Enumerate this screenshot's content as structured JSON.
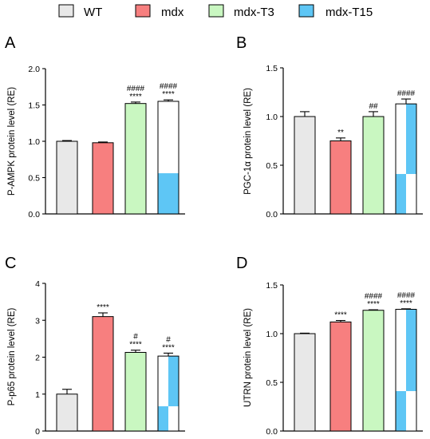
{
  "legend": [
    {
      "label": "WT",
      "color": "#e8e8e8"
    },
    {
      "label": "mdx",
      "color": "#f77f7f"
    },
    {
      "label": "mdx-T3",
      "color": "#c9f7c1"
    },
    {
      "label": "mdx-T15",
      "color": "#5ec6f5"
    }
  ],
  "colors": {
    "wt": "#e8e8e8",
    "mdx": "#f77f7f",
    "t3": "#c9f7c1",
    "t15": "#5ec6f5",
    "axis": "#000000"
  },
  "chart_data": [
    {
      "panel": "A",
      "type": "bar",
      "ylabel": "P-AMPK protein level (RE)",
      "ylim": [
        0,
        2.0
      ],
      "yticks": [
        "0.0",
        "0.5",
        "1.0",
        "1.5",
        "2.0"
      ],
      "categories": [
        "WT",
        "mdx",
        "mdx-T3",
        "mdx-T15"
      ],
      "values": [
        1.0,
        0.98,
        1.52,
        1.55
      ],
      "errors": [
        0.01,
        0.01,
        0.02,
        0.02
      ],
      "annotations": [
        {
          "bar": 2,
          "lines": [
            "####",
            "****"
          ]
        },
        {
          "bar": 3,
          "lines": [
            "####",
            "****"
          ]
        }
      ],
      "t15_fill": {
        "type": "bottom",
        "value": 0.56
      }
    },
    {
      "panel": "B",
      "type": "bar",
      "ylabel": "PGC-1α protein level (RE)",
      "ylim": [
        0,
        1.5
      ],
      "yticks": [
        "0.0",
        "0.5",
        "1.0",
        "1.5"
      ],
      "categories": [
        "WT",
        "mdx",
        "mdx-T3",
        "mdx-T15"
      ],
      "values": [
        1.0,
        0.75,
        1.0,
        1.13
      ],
      "errors": [
        0.05,
        0.03,
        0.05,
        0.05
      ],
      "annotations": [
        {
          "bar": 1,
          "lines": [
            "**"
          ]
        },
        {
          "bar": 2,
          "lines": [
            "##"
          ]
        },
        {
          "bar": 3,
          "lines": [
            "####"
          ]
        }
      ],
      "t15_fill": {
        "type": "diagonal",
        "value": 0.41
      }
    },
    {
      "panel": "C",
      "type": "bar",
      "ylabel": "P-p65 protein level (RE)",
      "ylim": [
        0,
        4
      ],
      "yticks": [
        "0",
        "1",
        "2",
        "3",
        "4"
      ],
      "categories": [
        "WT",
        "mdx",
        "mdx-T3",
        "mdx-T15"
      ],
      "values": [
        1.0,
        3.1,
        2.13,
        2.03
      ],
      "errors": [
        0.13,
        0.1,
        0.06,
        0.08
      ],
      "annotations": [
        {
          "bar": 1,
          "lines": [
            "****"
          ]
        },
        {
          "bar": 2,
          "lines": [
            "#",
            "****"
          ]
        },
        {
          "bar": 3,
          "lines": [
            "#",
            "****"
          ]
        }
      ],
      "t15_fill": {
        "type": "diagonal",
        "value": 0.67
      }
    },
    {
      "panel": "D",
      "type": "bar",
      "ylabel": "UTRN protein level (RE)",
      "ylim": [
        0,
        1.5
      ],
      "yticks": [
        "0.0",
        "0.5",
        "1.0",
        "1.5"
      ],
      "categories": [
        "WT",
        "mdx",
        "mdx-T3",
        "mdx-T15"
      ],
      "values": [
        1.0,
        1.12,
        1.24,
        1.25
      ],
      "errors": [
        0.005,
        0.015,
        0.005,
        0.005
      ],
      "annotations": [
        {
          "bar": 1,
          "lines": [
            "****"
          ]
        },
        {
          "bar": 2,
          "lines": [
            "####",
            "****"
          ]
        },
        {
          "bar": 3,
          "lines": [
            "####",
            "****"
          ]
        }
      ],
      "t15_fill": {
        "type": "diagonal",
        "value": 0.41
      }
    }
  ]
}
